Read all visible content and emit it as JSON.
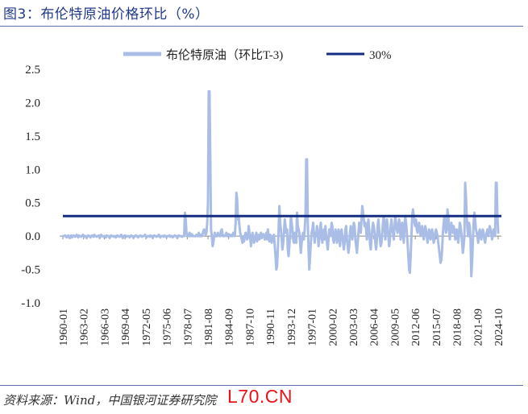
{
  "header": {
    "title": "图3：布伦特原油价格环比（%）"
  },
  "footer": {
    "source": "资料来源：Wind，中国银河证券研究院",
    "watermark": "L70.CN"
  },
  "colors": {
    "series_line": "#a9bde6",
    "threshold_line": "#142d82",
    "title": "#1f3a8a",
    "watermark": "#e8141a"
  },
  "chart_data": {
    "type": "line",
    "title": "",
    "xlabel": "",
    "ylabel": "",
    "ylim": [
      -1.0,
      2.5
    ],
    "yticks": [
      "2.5",
      "2.0",
      "1.5",
      "1.0",
      "0.5",
      "0.0",
      "-0.5",
      "-1.0"
    ],
    "xticks": [
      "1960-01",
      "1963-02",
      "1966-03",
      "1969-04",
      "1972-05",
      "1975-06",
      "1978-07",
      "1981-08",
      "1984-09",
      "1987-10",
      "1990-11",
      "1993-12",
      "1997-01",
      "2000-02",
      "2003-03",
      "2006-04",
      "2009-05",
      "2012-06",
      "2015-07",
      "2018-08",
      "2021-09",
      "2024-10"
    ],
    "legend_position": "top",
    "grid": false,
    "series": [
      {
        "name": "布伦特原油（环比T-3)",
        "x_start": "1960-01",
        "step": "month",
        "values": [
          0.0,
          0.0,
          0.0,
          0.01,
          0.0,
          -0.02,
          -0.01,
          0.01,
          0.0,
          -0.03,
          0.0,
          0.01,
          -0.02,
          0.0,
          0.01,
          0.0,
          -0.01,
          0.0,
          0.02,
          0.0,
          -0.02,
          0.01,
          0.0,
          0.0,
          -0.01,
          0.0,
          0.02,
          0.01,
          -0.01,
          0.0,
          0.0,
          -0.03,
          0.0,
          0.01,
          0.0,
          0.0,
          -0.02,
          0.0,
          0.01,
          0.0,
          -0.01,
          0.02,
          0.0,
          0.0,
          -0.01,
          0.0,
          0.0,
          0.01,
          -0.03,
          0.0,
          0.02,
          0.0,
          0.0,
          -0.01,
          0.0,
          0.0,
          -0.02,
          0.01,
          0.0,
          0.0,
          0.0,
          -0.03,
          0.0,
          0.01,
          0.0,
          0.0,
          -0.01,
          0.0,
          0.0,
          -0.02,
          0.0,
          0.01,
          0.0,
          0.0,
          -0.01,
          0.0,
          0.02,
          0.0,
          -0.03,
          0.0,
          0.0,
          0.01,
          0.0,
          -0.01,
          0.0,
          0.0,
          0.0,
          -0.02,
          0.0,
          0.01,
          0.0,
          0.0,
          -0.03,
          0.0,
          0.0,
          0.01,
          0.0,
          0.0,
          -0.02,
          0.0,
          0.0,
          0.01,
          0.0,
          -0.01,
          0.0,
          0.0,
          0.0,
          0.02,
          0.0,
          -0.02,
          0.0,
          0.0,
          0.0,
          -0.01,
          0.01,
          0.0,
          0.0,
          -0.03,
          0.0,
          0.01,
          0.0,
          0.0,
          -0.01,
          0.0,
          0.0,
          0.02,
          0.0,
          -0.02,
          0.0,
          0.0,
          0.0,
          -0.01,
          0.01,
          0.0,
          0.0,
          -0.02,
          0.0,
          0.0,
          0.0,
          0.01,
          -0.01,
          0.0,
          0.0,
          -0.02,
          0.0,
          0.0,
          0.01,
          0.0,
          0.0,
          -0.03,
          0.0,
          0.01,
          0.0,
          0.0,
          0.0,
          -0.01,
          0.0,
          0.0,
          0.0,
          0.35,
          0.25,
          0.05,
          0.0,
          0.02,
          0.0,
          0.05,
          0.0,
          0.0,
          0.03,
          0.0,
          0.0,
          0.0,
          0.0,
          0.0,
          0.02,
          0.0,
          0.0,
          0.05,
          0.0,
          0.0,
          0.02,
          0.0,
          0.03,
          0.08,
          0.1,
          0.05,
          0.02,
          0.05,
          0.2,
          0.5,
          2.17,
          2.17,
          1.2,
          0.1,
          0.0,
          -0.15,
          -0.1,
          0.0,
          0.05,
          0.0,
          0.0,
          0.0,
          0.05,
          0.02,
          0.0,
          0.0,
          0.08,
          0.1,
          0.03,
          0.0,
          0.0,
          0.0,
          0.02,
          0.05,
          0.0,
          0.0,
          0.03,
          0.0,
          0.0,
          0.02,
          0.0,
          0.0,
          0.05,
          0.03,
          0.0,
          0.2,
          0.65,
          0.55,
          0.25,
          0.3,
          0.15,
          0.05,
          0.0,
          -0.05,
          -0.1,
          0.0,
          -0.08,
          0.0,
          0.05,
          0.0,
          -0.05,
          -0.02,
          0.15,
          0.05,
          -0.02,
          -0.15,
          -0.03,
          0.05,
          0.0,
          -0.1,
          -0.05,
          0.0,
          0.05,
          -0.08,
          0.0,
          0.02,
          -0.05,
          0.0,
          0.05,
          -0.03,
          0.0,
          0.03,
          0.0,
          -0.05,
          0.0,
          0.05,
          -0.05,
          0.1,
          0.0,
          -0.08,
          0.02,
          0.0,
          -0.1,
          -0.05,
          0.0,
          0.02,
          -0.15,
          -0.3,
          -0.5,
          -0.45,
          -0.2,
          0.1,
          0.45,
          0.2,
          0.1,
          -0.05,
          -0.2,
          -0.1,
          0.05,
          0.25,
          0.15,
          0.05,
          0.1,
          -0.2,
          -0.3,
          -0.15,
          0.05,
          0.3,
          0.2,
          0.1,
          -0.05,
          -0.1,
          0.05,
          0.0,
          -0.1,
          0.35,
          0.15,
          0.1,
          0.05,
          -0.1,
          -0.25,
          -0.1,
          0.0,
          0.05,
          -0.05,
          0.1,
          0.3,
          1.15,
          1.15,
          0.2,
          -0.2,
          -0.5,
          -0.3,
          -0.1,
          0.05,
          0.1,
          0.2,
          0.05,
          -0.1,
          0.05,
          0.0,
          0.15,
          0.05,
          -0.15,
          -0.05,
          0.1,
          0.2,
          0.0,
          -0.1,
          0.05,
          0.1,
          -0.05,
          0.15,
          0.0,
          -0.1,
          -0.2,
          -0.05,
          0.1,
          0.0,
          0.05,
          0.2,
          0.15,
          -0.05,
          -0.1,
          0.0,
          0.1,
          0.05,
          -0.1,
          -0.05,
          0.1,
          0.0,
          -0.15,
          0.05,
          0.1,
          0.0,
          -0.1,
          -0.2,
          -0.1,
          0.1,
          0.15,
          -0.05,
          -0.15,
          -0.25,
          -0.15,
          0.05,
          0.15,
          0.05,
          -0.05,
          0.1,
          0.2,
          0.15,
          -0.05,
          -0.15,
          -0.25,
          -0.1,
          0.05,
          0.2,
          0.15,
          0.05,
          0.25,
          0.45,
          0.35,
          0.25,
          0.15,
          0.2,
          0.1,
          -0.05,
          0.15,
          0.25,
          0.1,
          -0.1,
          -0.2,
          -0.05,
          0.1,
          0.2,
          0.15,
          0.05,
          -0.1,
          -0.2,
          -0.05,
          0.15,
          0.25,
          0.1,
          -0.05,
          -0.15,
          -0.1,
          0.05,
          0.2,
          0.3,
          0.15,
          -0.05,
          0.1,
          0.25,
          0.15,
          0.0,
          -0.15,
          -0.05,
          0.15,
          0.25,
          0.1,
          0.05,
          -0.05,
          0.15,
          0.3,
          0.2,
          0.1,
          0.05,
          0.15,
          0.25,
          0.15,
          -0.05,
          0.1,
          0.2,
          0.05,
          -0.1,
          0.15,
          0.3,
          0.2,
          0.05,
          -0.1,
          -0.3,
          -0.5,
          -0.55,
          -0.3,
          0.0,
          0.3,
          0.4,
          0.3,
          0.2,
          0.15,
          0.25,
          0.1,
          0.05,
          0.15,
          0.2,
          0.1,
          0.0,
          0.1,
          0.15,
          0.05,
          -0.05,
          0.05,
          0.15,
          0.1,
          0.0,
          -0.1,
          0.0,
          0.1,
          0.05,
          -0.05,
          0.05,
          0.1,
          0.0,
          -0.1,
          -0.05,
          0.05,
          0.1,
          0.05,
          0.0,
          -0.1,
          -0.2,
          -0.3,
          -0.4,
          -0.35,
          -0.2,
          0.05,
          0.2,
          0.3,
          0.15,
          0.05,
          0.1,
          0.4,
          0.3,
          0.1,
          -0.05,
          0.1,
          0.2,
          0.1,
          0.05,
          0.15,
          0.1,
          -0.05,
          0.05,
          0.1,
          0.0,
          -0.1,
          0.05,
          0.2,
          0.15,
          0.05,
          -0.1,
          -0.25,
          -0.15,
          0.0,
          0.8,
          0.6,
          0.3,
          0.1,
          0.0,
          0.2,
          0.15,
          -0.05,
          -0.6,
          -0.4,
          -0.1,
          0.2,
          0.35,
          0.25,
          0.1,
          0.05,
          0.0,
          -0.1,
          0.05,
          0.1,
          0.0,
          -0.05,
          0.05,
          0.1,
          0.05,
          -0.05,
          -0.1,
          0.0,
          0.05,
          0.1,
          0.0,
          0.05,
          0.15,
          0.1,
          0.05,
          -0.05,
          0.0,
          0.1,
          0.05,
          0.0,
          0.8,
          0.8,
          0.3,
          0.05
        ]
      },
      {
        "name": "30%",
        "constant": 0.3
      }
    ]
  }
}
